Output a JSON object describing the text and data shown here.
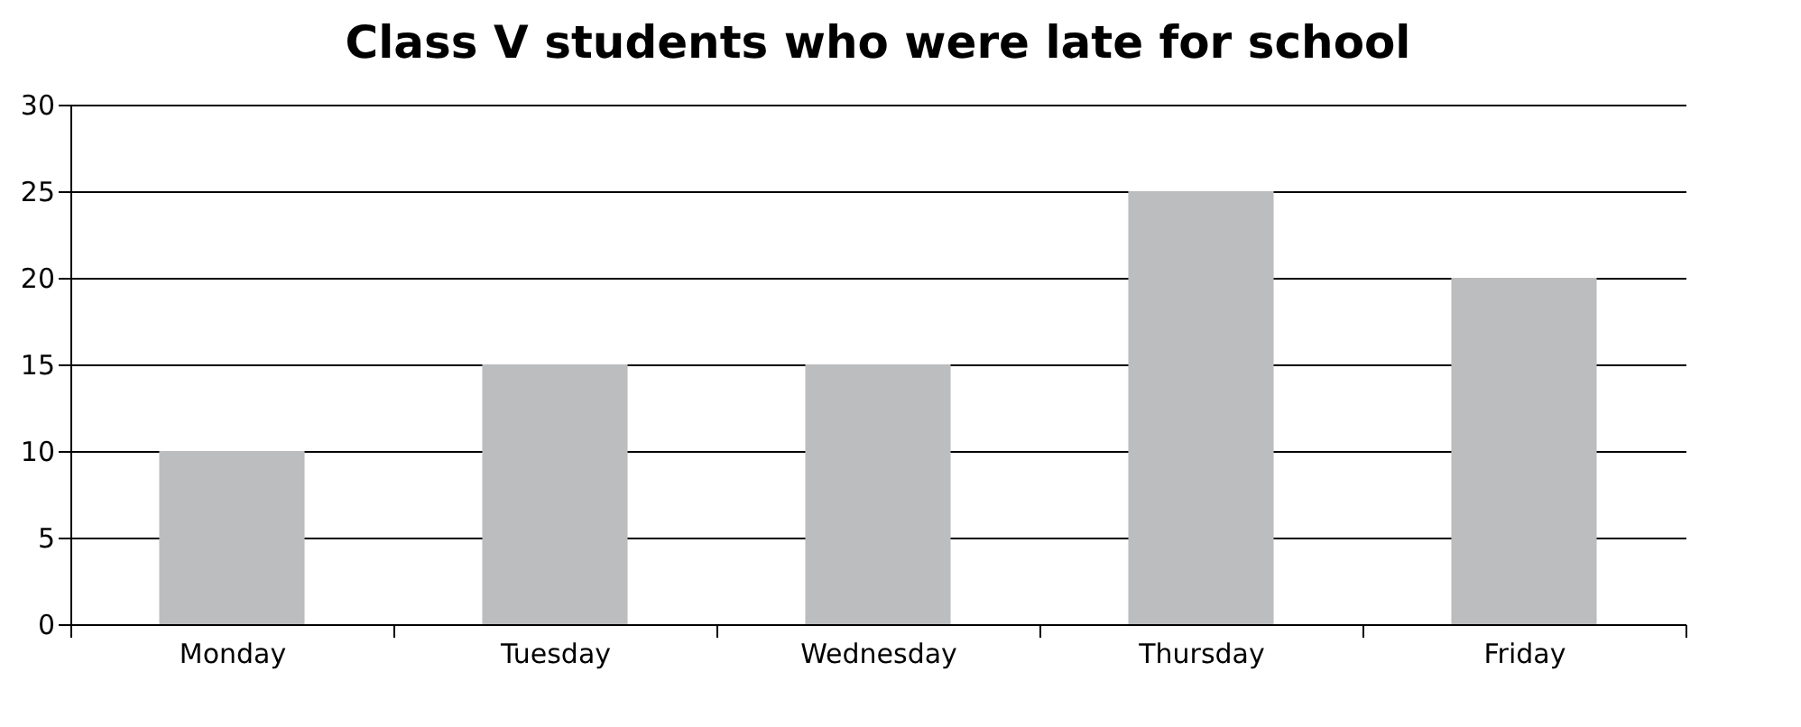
{
  "chart_data": {
    "type": "bar",
    "title": "Class V students who were late for school",
    "categories": [
      "Monday",
      "Tuesday",
      "Wednesday",
      "Thursday",
      "Friday"
    ],
    "values": [
      10,
      15,
      15,
      25,
      20
    ],
    "color": "#bcbdbf",
    "ylim": [
      0,
      30
    ],
    "yticks": [
      0,
      5,
      10,
      15,
      20,
      25,
      30
    ],
    "grid": "y"
  }
}
